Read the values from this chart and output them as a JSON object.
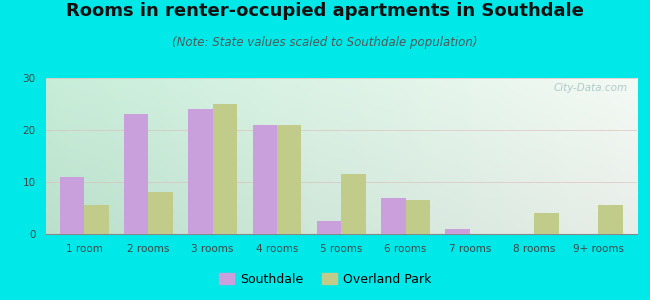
{
  "title": "Rooms in renter-occupied apartments in Southdale",
  "subtitle": "(Note: State values scaled to Southdale population)",
  "categories": [
    "1 room",
    "2 rooms",
    "3 rooms",
    "4 rooms",
    "5 rooms",
    "6 rooms",
    "7 rooms",
    "8 rooms",
    "9+ rooms"
  ],
  "southdale": [
    11,
    23,
    24,
    21,
    2.5,
    7,
    1,
    0,
    0
  ],
  "overland_park": [
    5.5,
    8,
    25,
    21,
    11.5,
    6.5,
    0,
    4,
    5.5
  ],
  "southdale_color": "#c9a0dc",
  "overland_park_color": "#c2cc8a",
  "bg_color": "#00e8e8",
  "ylim": [
    0,
    30
  ],
  "yticks": [
    0,
    10,
    20,
    30
  ],
  "bar_width": 0.38,
  "title_fontsize": 13,
  "subtitle_fontsize": 8.5,
  "tick_fontsize": 7.5,
  "legend_fontsize": 9,
  "watermark": "City-Data.com"
}
